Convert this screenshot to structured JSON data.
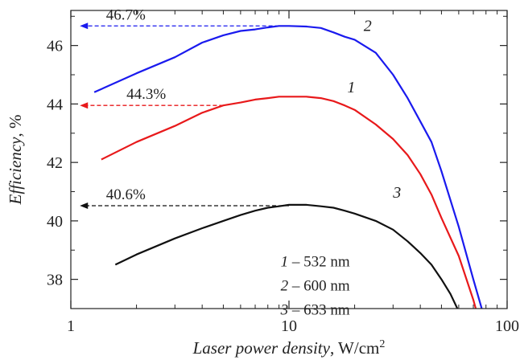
{
  "chart_data": {
    "type": "line",
    "xscale": "log",
    "xlim": [
      1,
      100
    ],
    "ylim": [
      37,
      47.2
    ],
    "x_ticks": [
      {
        "value": 1,
        "label": "1"
      },
      {
        "value": 10,
        "label": "10"
      },
      {
        "value": 100,
        "label": "100"
      }
    ],
    "y_ticks": [
      {
        "value": 38,
        "label": "38"
      },
      {
        "value": 40,
        "label": "40"
      },
      {
        "value": 42,
        "label": "42"
      },
      {
        "value": 44,
        "label": "44"
      },
      {
        "value": 46,
        "label": "46"
      }
    ],
    "xlabel": {
      "italic": "Laser power density",
      "rest": ", W/cm",
      "sup": "2"
    },
    "ylabel": {
      "italic": "Efficiency",
      "rest": ", %"
    },
    "grid": false,
    "series": [
      {
        "name": "1",
        "color": "#e8191b",
        "label_at": [
          18.5,
          44.4
        ],
        "points": [
          [
            1.38,
            42.1
          ],
          [
            2,
            42.7
          ],
          [
            3,
            43.25
          ],
          [
            4,
            43.7
          ],
          [
            5,
            43.95
          ],
          [
            6,
            44.05
          ],
          [
            7,
            44.15
          ],
          [
            8,
            44.2
          ],
          [
            9,
            44.25
          ],
          [
            10,
            44.25
          ],
          [
            12,
            44.25
          ],
          [
            14,
            44.2
          ],
          [
            16,
            44.1
          ],
          [
            18,
            43.95
          ],
          [
            20,
            43.8
          ],
          [
            25,
            43.3
          ],
          [
            30,
            42.8
          ],
          [
            35,
            42.25
          ],
          [
            40,
            41.6
          ],
          [
            45,
            40.9
          ],
          [
            50,
            40.1
          ],
          [
            60,
            38.8
          ],
          [
            70,
            37.3
          ],
          [
            75,
            36.5
          ]
        ]
      },
      {
        "name": "2",
        "color": "#1a1aee",
        "label_at": [
          22,
          46.5
        ],
        "points": [
          [
            1.28,
            44.4
          ],
          [
            2,
            45.05
          ],
          [
            3,
            45.6
          ],
          [
            4,
            46.1
          ],
          [
            5,
            46.35
          ],
          [
            6,
            46.5
          ],
          [
            7,
            46.55
          ],
          [
            8,
            46.62
          ],
          [
            9,
            46.67
          ],
          [
            10,
            46.67
          ],
          [
            12,
            46.65
          ],
          [
            14,
            46.6
          ],
          [
            16,
            46.45
          ],
          [
            18,
            46.3
          ],
          [
            20,
            46.2
          ],
          [
            25,
            45.75
          ],
          [
            30,
            45.0
          ],
          [
            35,
            44.2
          ],
          [
            40,
            43.4
          ],
          [
            45,
            42.7
          ],
          [
            50,
            41.7
          ],
          [
            60,
            39.8
          ],
          [
            70,
            38.0
          ],
          [
            80,
            36.5
          ]
        ]
      },
      {
        "name": "3",
        "color": "#111111",
        "label_at": [
          30,
          40.8
        ],
        "points": [
          [
            1.6,
            38.5
          ],
          [
            2,
            38.85
          ],
          [
            3,
            39.4
          ],
          [
            4,
            39.75
          ],
          [
            5,
            40.0
          ],
          [
            6,
            40.2
          ],
          [
            7,
            40.35
          ],
          [
            8,
            40.45
          ],
          [
            9,
            40.5
          ],
          [
            10,
            40.55
          ],
          [
            12,
            40.55
          ],
          [
            14,
            40.5
          ],
          [
            16,
            40.45
          ],
          [
            18,
            40.35
          ],
          [
            20,
            40.25
          ],
          [
            25,
            40.0
          ],
          [
            30,
            39.7
          ],
          [
            35,
            39.3
          ],
          [
            40,
            38.9
          ],
          [
            45,
            38.5
          ],
          [
            50,
            38.0
          ],
          [
            55,
            37.5
          ],
          [
            60,
            36.9
          ]
        ]
      }
    ],
    "annotations": [
      {
        "text": "46.7%",
        "y": 46.67,
        "x_from": 9,
        "x_to": 1.1,
        "color": "#1a1aee",
        "text_x": 1.45
      },
      {
        "text": "44.3%",
        "y": 43.95,
        "x_from": 5,
        "x_to": 1.1,
        "color": "#e8191b",
        "text_x": 1.8
      },
      {
        "text": "40.6%",
        "y": 40.52,
        "x_from": 10,
        "x_to": 1.1,
        "color": "#111111",
        "text_x": 1.45
      }
    ],
    "legend": {
      "position": "bottom-center",
      "entries": [
        {
          "num": "1",
          "text": " – 532 nm"
        },
        {
          "num": "2",
          "text": " – 600 nm"
        },
        {
          "num": "3",
          "text": " – 633 nm"
        }
      ]
    }
  }
}
